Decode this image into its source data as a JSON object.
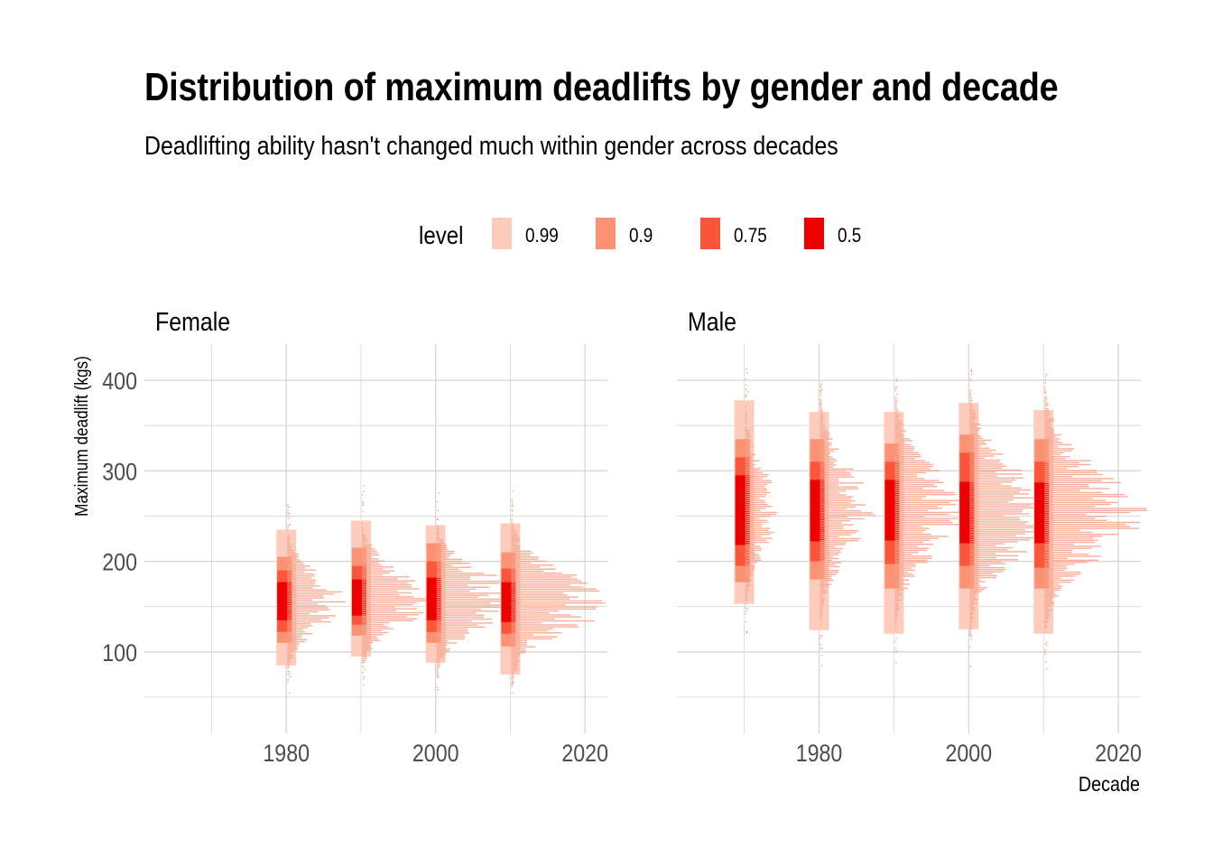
{
  "title": "Distribution of maximum deadlifts by gender and decade",
  "subtitle": "Deadlifting ability hasn't changed much within gender across decades",
  "colors": {
    "0.99": "#FDCCBC",
    "0.9": "#FB9273",
    "0.75": "#FB553A",
    "0.5": "#EE0000",
    "histogram": "#F6A18A",
    "grid": "#D6D6D6"
  },
  "chart_data": {
    "type": "interval-histogram",
    "legend": {
      "title": "level",
      "position": "top",
      "levels": [
        "0.99",
        "0.9",
        "0.75",
        "0.5"
      ]
    },
    "xlabel": "Decade",
    "ylabel": "Maximum deadlift (kgs)",
    "xlim": [
      1961,
      2023
    ],
    "ylim": [
      10,
      440
    ],
    "x_ticks": [
      1980,
      2000,
      2020
    ],
    "y_ticks": [
      100,
      200,
      300,
      400
    ],
    "grid": true,
    "facets": [
      {
        "label": "Female",
        "groups": [
          {
            "decade": 1980,
            "intervals": {
              "0.99": [
                85,
                235
              ],
              "0.9": [
                110,
                205
              ],
              "0.75": [
                122,
                190
              ],
              "0.5": [
                135,
                177
              ]
            },
            "spread": 0.6
          },
          {
            "decade": 1990,
            "intervals": {
              "0.99": [
                95,
                245
              ],
              "0.9": [
                118,
                215
              ],
              "0.75": [
                130,
                195
              ],
              "0.5": [
                140,
                180
              ]
            },
            "spread": 0.75
          },
          {
            "decade": 2000,
            "intervals": {
              "0.99": [
                88,
                240
              ],
              "0.9": [
                110,
                220
              ],
              "0.75": [
                122,
                200
              ],
              "0.5": [
                135,
                182
              ]
            },
            "spread": 0.9
          },
          {
            "decade": 2010,
            "intervals": {
              "0.99": [
                75,
                242
              ],
              "0.9": [
                106,
                210
              ],
              "0.75": [
                120,
                192
              ],
              "0.5": [
                133,
                177
              ]
            },
            "spread": 1.0
          }
        ]
      },
      {
        "label": "Male",
        "groups": [
          {
            "decade": 1970,
            "intervals": {
              "0.99": [
                153,
                378
              ],
              "0.9": [
                177,
                335
              ],
              "0.75": [
                195,
                315
              ],
              "0.5": [
                218,
                295
              ]
            },
            "spread": 0.35
          },
          {
            "decade": 1980,
            "intervals": {
              "0.99": [
                124,
                365
              ],
              "0.9": [
                180,
                335
              ],
              "0.75": [
                200,
                310
              ],
              "0.5": [
                222,
                290
              ]
            },
            "spread": 0.55
          },
          {
            "decade": 1990,
            "intervals": {
              "0.99": [
                120,
                365
              ],
              "0.9": [
                170,
                330
              ],
              "0.75": [
                197,
                310
              ],
              "0.5": [
                223,
                290
              ]
            },
            "spread": 0.7
          },
          {
            "decade": 2000,
            "intervals": {
              "0.99": [
                125,
                375
              ],
              "0.9": [
                170,
                340
              ],
              "0.75": [
                195,
                320
              ],
              "0.5": [
                220,
                288
              ]
            },
            "spread": 0.85
          },
          {
            "decade": 2010,
            "intervals": {
              "0.99": [
                120,
                367
              ],
              "0.9": [
                170,
                335
              ],
              "0.75": [
                193,
                310
              ],
              "0.5": [
                220,
                287
              ]
            },
            "spread": 1.0
          }
        ]
      }
    ]
  }
}
